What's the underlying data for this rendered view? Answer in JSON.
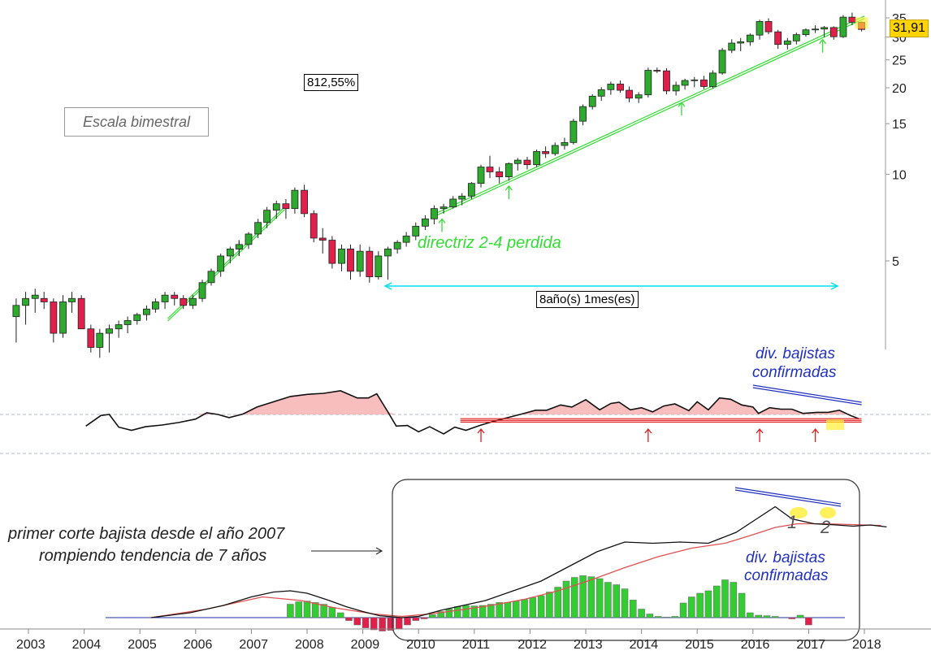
{
  "labels": {
    "scale": "Escala bimestral",
    "performance": "812,55%",
    "duration": "8año(s) 1mes(es)",
    "lost_guideline": "directriz 2-4 perdida",
    "divergences_top": [
      "div. bajistas",
      "confirmadas"
    ],
    "divergences_bottom": [
      "div. bajistas",
      "confirmadas"
    ],
    "comment": [
      "primer corte bajista desde el año 2007",
      "rompiendo tendencia de 7 años"
    ],
    "wave_1": "1",
    "wave_2": "2",
    "last_price": "31,91"
  },
  "colors": {
    "up": "#2eaa2e",
    "down": "#e0204a",
    "trendline": "#33dd33",
    "support": "#e02020",
    "divergence": "#2030c0",
    "signal": "#e05050",
    "histogram_pos": "#33cc33",
    "histogram_neg": "#e0204a",
    "highlight": "#ffee33",
    "measure": "#00e0f0"
  },
  "chart_data": {
    "type": "candlestick",
    "scale": "log",
    "ylim": [
      2.6,
      38
    ],
    "yticks": [
      5,
      10,
      15,
      20,
      25,
      30,
      35
    ],
    "xticks": [
      "2003",
      "2004",
      "2005",
      "2006",
      "2007",
      "2008",
      "2009",
      "2010",
      "2011",
      "2012",
      "2013",
      "2014",
      "2015",
      "2016",
      "2017",
      "2018"
    ],
    "xlim": [
      2003.0,
      2018.45
    ],
    "candles": [
      [
        2002.78,
        3.2,
        3.7,
        2.6,
        3.5
      ],
      [
        2002.95,
        3.5,
        3.9,
        3.0,
        3.7
      ],
      [
        2003.12,
        3.7,
        4.0,
        3.3,
        3.8
      ],
      [
        2003.28,
        3.7,
        3.9,
        3.4,
        3.6
      ],
      [
        2003.45,
        3.6,
        3.7,
        2.6,
        2.8
      ],
      [
        2003.62,
        2.8,
        3.8,
        2.7,
        3.6
      ],
      [
        2003.78,
        3.6,
        3.9,
        3.3,
        3.7
      ],
      [
        2003.95,
        3.7,
        3.8,
        2.9,
        2.9
      ],
      [
        2004.12,
        2.9,
        3.0,
        2.4,
        2.5
      ],
      [
        2004.28,
        2.5,
        2.9,
        2.3,
        2.8
      ],
      [
        2004.45,
        2.8,
        3.0,
        2.4,
        2.9
      ],
      [
        2004.62,
        2.9,
        3.1,
        2.7,
        3.0
      ],
      [
        2004.78,
        3.0,
        3.2,
        2.8,
        3.1
      ],
      [
        2004.95,
        3.1,
        3.3,
        3.0,
        3.25
      ],
      [
        2005.12,
        3.25,
        3.5,
        3.1,
        3.4
      ],
      [
        2005.28,
        3.4,
        3.7,
        3.3,
        3.6
      ],
      [
        2005.45,
        3.6,
        3.9,
        3.4,
        3.8
      ],
      [
        2005.62,
        3.8,
        3.9,
        3.5,
        3.7
      ],
      [
        2005.78,
        3.7,
        3.8,
        3.4,
        3.5
      ],
      [
        2005.95,
        3.5,
        3.8,
        3.4,
        3.7
      ],
      [
        2006.12,
        3.7,
        4.3,
        3.6,
        4.2
      ],
      [
        2006.28,
        4.2,
        4.7,
        4.1,
        4.6
      ],
      [
        2006.45,
        4.6,
        5.3,
        4.4,
        5.2
      ],
      [
        2006.62,
        5.2,
        5.6,
        4.9,
        5.5
      ],
      [
        2006.78,
        5.5,
        5.9,
        5.2,
        5.7
      ],
      [
        2006.95,
        5.7,
        6.3,
        5.5,
        6.2
      ],
      [
        2006.78,
        5.5,
        5.9,
        5.2,
        5.7
      ],
      [
        2007.12,
        6.2,
        7.0,
        6.0,
        6.8
      ],
      [
        2007.28,
        6.8,
        7.7,
        6.5,
        7.5
      ],
      [
        2007.45,
        7.5,
        8.1,
        7.0,
        7.9
      ],
      [
        2007.62,
        7.9,
        8.2,
        7.0,
        7.6
      ],
      [
        2007.78,
        7.6,
        9.0,
        7.3,
        8.8
      ],
      [
        2007.95,
        8.8,
        9.2,
        7.1,
        7.3
      ],
      [
        2008.12,
        7.3,
        7.5,
        5.8,
        6.0
      ],
      [
        2008.28,
        6.0,
        6.5,
        5.3,
        5.9
      ],
      [
        2008.45,
        5.9,
        6.1,
        4.7,
        4.9
      ],
      [
        2008.62,
        4.9,
        5.7,
        4.6,
        5.5
      ],
      [
        2008.78,
        5.5,
        5.7,
        4.3,
        4.6
      ],
      [
        2008.95,
        4.6,
        5.7,
        4.4,
        5.4
      ],
      [
        2009.12,
        5.4,
        5.6,
        4.2,
        4.4
      ],
      [
        2009.28,
        4.4,
        5.4,
        4.3,
        5.2
      ],
      [
        2009.45,
        5.2,
        5.6,
        4.3,
        5.5
      ],
      [
        2009.62,
        5.5,
        5.9,
        5.3,
        5.8
      ],
      [
        2009.78,
        5.8,
        6.3,
        5.6,
        6.1
      ],
      [
        2009.95,
        6.1,
        6.8,
        5.9,
        6.6
      ],
      [
        2010.12,
        6.6,
        7.2,
        6.4,
        7.0
      ],
      [
        2010.28,
        7.0,
        7.8,
        6.7,
        7.6
      ],
      [
        2010.45,
        7.6,
        7.9,
        7.3,
        7.7
      ],
      [
        2010.62,
        7.7,
        8.4,
        7.6,
        8.2
      ],
      [
        2010.78,
        8.2,
        8.6,
        7.8,
        8.4
      ],
      [
        2010.95,
        8.4,
        9.4,
        8.2,
        9.3
      ],
      [
        2011.12,
        9.3,
        10.8,
        9.0,
        10.6
      ],
      [
        2011.28,
        10.6,
        11.6,
        9.7,
        10.2
      ],
      [
        2011.45,
        10.2,
        10.6,
        9.3,
        9.8
      ],
      [
        2011.62,
        9.8,
        11.0,
        9.5,
        10.9
      ],
      [
        2011.78,
        10.9,
        11.4,
        10.3,
        11.2
      ],
      [
        2011.95,
        11.2,
        11.5,
        10.4,
        10.8
      ],
      [
        2012.12,
        10.8,
        12.2,
        10.6,
        12.0
      ],
      [
        2012.28,
        12.0,
        12.5,
        11.4,
        11.8
      ],
      [
        2012.45,
        11.8,
        12.9,
        11.6,
        12.6
      ],
      [
        2012.62,
        12.6,
        13.4,
        12.2,
        12.9
      ],
      [
        2012.78,
        12.9,
        15.6,
        12.7,
        15.3
      ],
      [
        2012.95,
        15.3,
        17.5,
        14.8,
        17.2
      ],
      [
        2013.12,
        17.2,
        19.0,
        16.8,
        18.7
      ],
      [
        2013.28,
        18.7,
        20.1,
        18.0,
        19.7
      ],
      [
        2013.45,
        19.7,
        21.0,
        18.9,
        20.6
      ],
      [
        2013.62,
        20.6,
        21.2,
        19.2,
        19.6
      ],
      [
        2013.78,
        19.6,
        20.2,
        17.8,
        18.4
      ],
      [
        2013.95,
        18.4,
        19.3,
        17.7,
        18.9
      ],
      [
        2014.12,
        18.9,
        23.5,
        18.5,
        23.0
      ],
      [
        2014.28,
        23.0,
        23.5,
        22.5,
        22.9
      ],
      [
        2014.45,
        22.9,
        23.4,
        19.0,
        19.5
      ],
      [
        2014.62,
        19.5,
        21.0,
        18.8,
        20.4
      ],
      [
        2014.78,
        20.4,
        21.5,
        19.7,
        21.2
      ],
      [
        2014.95,
        21.2,
        21.8,
        20.1,
        21.3
      ],
      [
        2015.12,
        21.3,
        22.0,
        19.8,
        20.2
      ],
      [
        2015.28,
        20.2,
        23.0,
        19.9,
        22.5
      ],
      [
        2015.45,
        22.5,
        27.5,
        22.2,
        27.0
      ],
      [
        2015.62,
        27.0,
        29.5,
        26.4,
        28.6
      ],
      [
        2015.78,
        28.6,
        29.8,
        26.8,
        28.9
      ],
      [
        2015.95,
        28.9,
        30.9,
        28.0,
        30.5
      ],
      [
        2016.12,
        30.5,
        34.5,
        29.4,
        34.0
      ],
      [
        2016.28,
        34.0,
        34.9,
        30.7,
        31.3
      ],
      [
        2016.45,
        31.3,
        31.8,
        27.3,
        28.3
      ],
      [
        2016.62,
        28.3,
        29.8,
        27.2,
        29.1
      ],
      [
        2016.78,
        29.1,
        31.1,
        28.3,
        30.6
      ],
      [
        2016.95,
        30.6,
        32.2,
        30.1,
        31.8
      ],
      [
        2017.12,
        31.8,
        33.0,
        31.0,
        32.0
      ],
      [
        2017.28,
        32.0,
        32.8,
        30.0,
        32.4
      ],
      [
        2017.45,
        32.4,
        32.7,
        29.4,
        30.1
      ],
      [
        2017.62,
        30.1,
        35.8,
        29.8,
        35.2
      ],
      [
        2017.78,
        35.2,
        36.5,
        33.0,
        33.8
      ],
      [
        2017.95,
        33.8,
        34.0,
        31.4,
        31.9
      ]
    ],
    "oscillator": [
      [
        2004.03,
        -0.55
      ],
      [
        2004.3,
        -0.05
      ],
      [
        2004.45,
        0.0
      ],
      [
        2004.62,
        -0.6
      ],
      [
        2004.85,
        -0.75
      ],
      [
        2005.1,
        -0.58
      ],
      [
        2005.4,
        -0.5
      ],
      [
        2005.7,
        -0.38
      ],
      [
        2006.0,
        -0.22
      ],
      [
        2006.2,
        0.08
      ],
      [
        2006.4,
        0.0
      ],
      [
        2006.6,
        -0.15
      ],
      [
        2006.85,
        0.02
      ],
      [
        2007.1,
        0.35
      ],
      [
        2007.4,
        0.6
      ],
      [
        2007.7,
        0.85
      ],
      [
        2008.0,
        0.95
      ],
      [
        2008.3,
        1.0
      ],
      [
        2008.6,
        1.12
      ],
      [
        2008.9,
        0.78
      ],
      [
        2009.1,
        0.78
      ],
      [
        2009.25,
        0.98
      ],
      [
        2009.45,
        0.12
      ],
      [
        2009.6,
        -0.55
      ],
      [
        2009.8,
        -0.52
      ],
      [
        2010.0,
        -0.82
      ],
      [
        2010.2,
        -0.58
      ],
      [
        2010.45,
        -0.92
      ],
      [
        2010.65,
        -0.6
      ],
      [
        2010.85,
        -0.75
      ],
      [
        2011.1,
        -0.52
      ],
      [
        2011.35,
        -0.32
      ],
      [
        2011.6,
        -0.15
      ],
      [
        2011.85,
        0.02
      ],
      [
        2012.1,
        0.2
      ],
      [
        2012.3,
        0.2
      ],
      [
        2012.55,
        0.45
      ],
      [
        2012.75,
        0.35
      ],
      [
        2013.0,
        0.7
      ],
      [
        2013.25,
        0.22
      ],
      [
        2013.45,
        0.52
      ],
      [
        2013.6,
        0.58
      ],
      [
        2013.8,
        0.22
      ],
      [
        2014.0,
        0.32
      ],
      [
        2014.2,
        0.12
      ],
      [
        2014.4,
        0.4
      ],
      [
        2014.6,
        0.5
      ],
      [
        2014.85,
        0.18
      ],
      [
        2015.0,
        0.6
      ],
      [
        2015.2,
        0.22
      ],
      [
        2015.4,
        0.78
      ],
      [
        2015.6,
        0.72
      ],
      [
        2015.8,
        0.45
      ],
      [
        2016.0,
        0.35
      ],
      [
        2016.1,
        0.05
      ],
      [
        2016.3,
        0.32
      ],
      [
        2016.5,
        0.25
      ],
      [
        2016.7,
        0.25
      ],
      [
        2016.9,
        0.05
      ],
      [
        2017.15,
        0.1
      ],
      [
        2017.35,
        0.1
      ],
      [
        2017.55,
        0.2
      ],
      [
        2017.75,
        -0.05
      ],
      [
        2017.9,
        -0.2
      ]
    ],
    "oscillator_support": 0.0,
    "price_osc_line": [
      [
        2004.5,
        0.0
      ],
      [
        2005.2,
        0.2
      ],
      [
        2005.8,
        0.5
      ],
      [
        2006.3,
        0.85
      ],
      [
        2006.7,
        1.05
      ],
      [
        2007.0,
        1.1
      ],
      [
        2007.3,
        1.0
      ],
      [
        2007.7,
        0.7
      ],
      [
        2008.0,
        0.45
      ],
      [
        2008.3,
        0.25
      ],
      [
        2008.6,
        0.08
      ],
      [
        2009.0,
        0.0
      ],
      [
        2009.3,
        0.05
      ],
      [
        2009.7,
        0.3
      ],
      [
        2010.0,
        0.45
      ],
      [
        2010.5,
        0.7
      ],
      [
        2011.0,
        1.1
      ],
      [
        2011.5,
        1.5
      ],
      [
        2012.0,
        2.1
      ],
      [
        2012.5,
        2.7
      ],
      [
        2013.0,
        3.1
      ],
      [
        2013.5,
        3.05
      ],
      [
        2014.0,
        3.1
      ],
      [
        2014.5,
        3.05
      ],
      [
        2015.0,
        3.5
      ],
      [
        2015.4,
        4.1
      ],
      [
        2015.7,
        4.55
      ],
      [
        2016.0,
        4.05
      ],
      [
        2016.4,
        3.85
      ],
      [
        2016.8,
        3.8
      ],
      [
        2017.1,
        3.75
      ],
      [
        2017.4,
        3.8
      ],
      [
        2017.7,
        3.72
      ]
    ],
    "signal_line": [
      [
        2004.5,
        0.0
      ],
      [
        2005.5,
        0.35
      ],
      [
        2006.5,
        0.85
      ],
      [
        2007.2,
        0.7
      ],
      [
        2007.8,
        0.4
      ],
      [
        2008.5,
        0.15
      ],
      [
        2009.0,
        0.05
      ],
      [
        2009.5,
        0.15
      ],
      [
        2010.0,
        0.3
      ],
      [
        2010.6,
        0.5
      ],
      [
        2011.2,
        0.75
      ],
      [
        2011.8,
        1.1
      ],
      [
        2012.4,
        1.55
      ],
      [
        2013.0,
        2.05
      ],
      [
        2013.6,
        2.5
      ],
      [
        2014.2,
        2.85
      ],
      [
        2014.8,
        3.05
      ],
      [
        2015.3,
        3.4
      ],
      [
        2015.7,
        3.7
      ],
      [
        2016.1,
        3.85
      ],
      [
        2016.6,
        3.85
      ],
      [
        2017.0,
        3.82
      ],
      [
        2017.6,
        3.78
      ]
    ],
    "histogram": [
      [
        2005.7,
        0.55
      ],
      [
        2005.85,
        0.65
      ],
      [
        2006.0,
        0.68
      ],
      [
        2006.15,
        0.62
      ],
      [
        2006.3,
        0.55
      ],
      [
        2006.45,
        0.42
      ],
      [
        2006.6,
        0.2
      ],
      [
        2006.75,
        -0.12
      ],
      [
        2006.9,
        -0.3
      ],
      [
        2007.05,
        -0.42
      ],
      [
        2007.2,
        -0.5
      ],
      [
        2007.35,
        -0.55
      ],
      [
        2007.5,
        -0.52
      ],
      [
        2007.65,
        -0.45
      ],
      [
        2007.8,
        -0.3
      ],
      [
        2007.95,
        -0.12
      ],
      [
        2008.1,
        -0.05
      ],
      [
        2008.25,
        0.12
      ],
      [
        2008.4,
        0.25
      ],
      [
        2008.55,
        0.35
      ],
      [
        2008.7,
        0.45
      ],
      [
        2008.85,
        0.5
      ],
      [
        2009.0,
        0.48
      ],
      [
        2009.15,
        0.5
      ],
      [
        2009.3,
        0.55
      ],
      [
        2009.45,
        0.62
      ],
      [
        2009.6,
        0.62
      ],
      [
        2009.75,
        0.68
      ],
      [
        2009.9,
        0.75
      ],
      [
        2010.05,
        0.82
      ],
      [
        2010.2,
        0.9
      ],
      [
        2010.35,
        1.05
      ],
      [
        2010.5,
        1.25
      ],
      [
        2010.65,
        1.5
      ],
      [
        2010.8,
        1.65
      ],
      [
        2010.95,
        1.72
      ],
      [
        2011.1,
        1.68
      ],
      [
        2011.25,
        1.6
      ],
      [
        2011.4,
        1.45
      ],
      [
        2011.55,
        1.35
      ],
      [
        2011.7,
        1.18
      ],
      [
        2011.85,
        0.72
      ],
      [
        2012.0,
        0.35
      ],
      [
        2012.15,
        0.15
      ],
      [
        2012.3,
        0.05
      ],
      [
        2012.45,
        0.02
      ],
      [
        2012.6,
        0.05
      ],
      [
        2012.75,
        0.6
      ],
      [
        2012.9,
        0.85
      ],
      [
        2013.05,
        1.0
      ],
      [
        2013.2,
        1.1
      ],
      [
        2013.35,
        1.3
      ],
      [
        2013.5,
        1.55
      ],
      [
        2013.65,
        1.45
      ],
      [
        2013.8,
        1.0
      ],
      [
        2013.95,
        0.2
      ],
      [
        2014.1,
        0.1
      ],
      [
        2014.25,
        0.08
      ],
      [
        2014.4,
        0.05
      ],
      [
        2014.55,
        0.0
      ],
      [
        2014.7,
        -0.05
      ],
      [
        2014.85,
        0.1
      ],
      [
        2015.0,
        -0.3
      ]
    ],
    "histogram_x_offset": 2.0
  }
}
